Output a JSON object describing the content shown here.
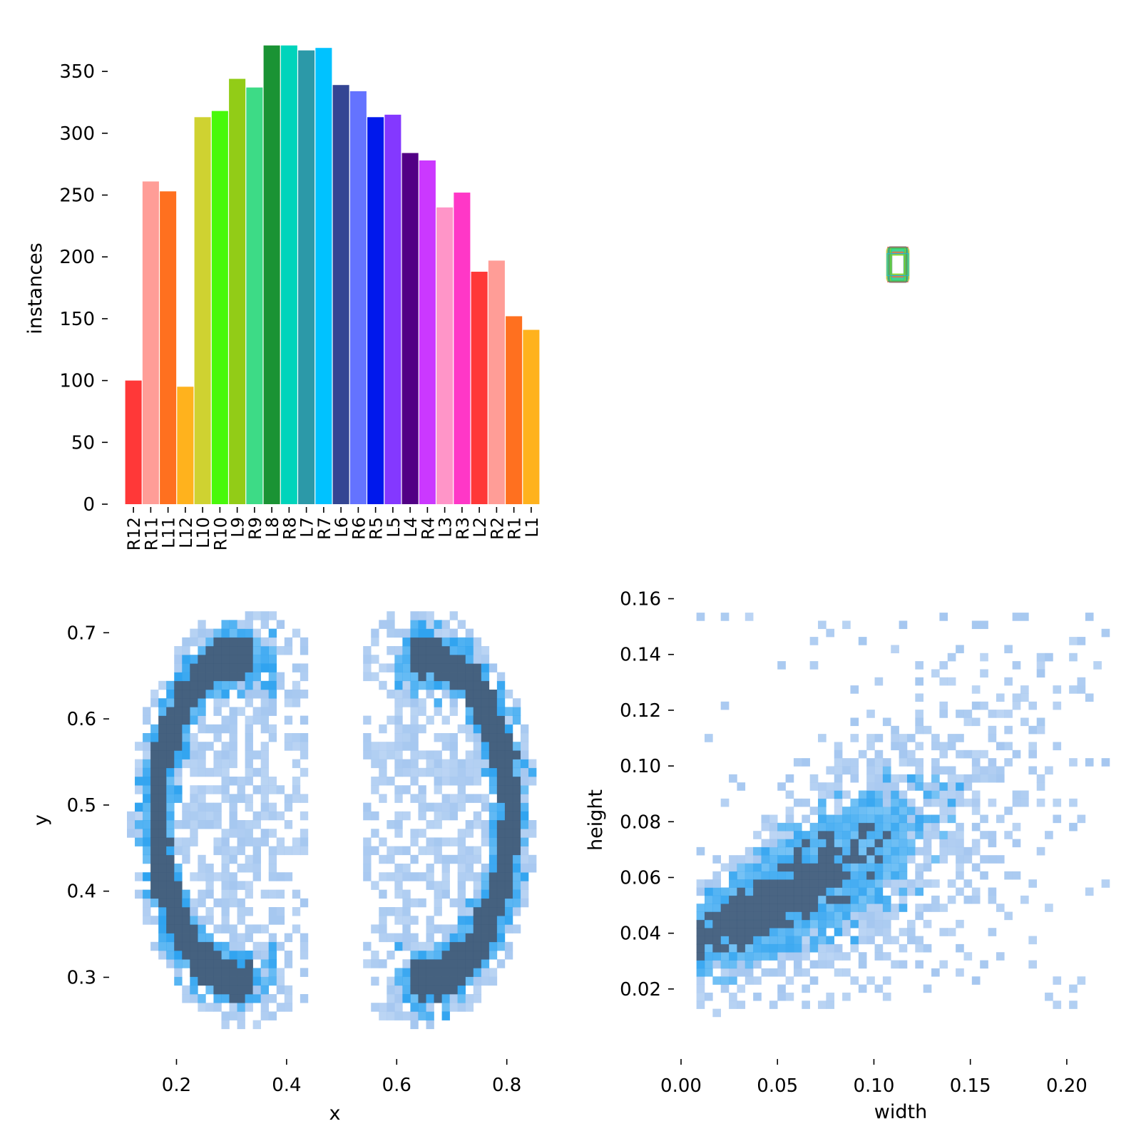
{
  "chart_data": [
    {
      "type": "bar",
      "ylabel": "instances",
      "xlabel": "",
      "ylim": [
        0,
        372
      ],
      "yticks": [
        0,
        50,
        100,
        150,
        200,
        250,
        300,
        350
      ],
      "categories": [
        "R12",
        "R11",
        "L11",
        "L12",
        "L10",
        "R10",
        "L9",
        "R9",
        "L8",
        "R8",
        "L7",
        "R7",
        "L6",
        "R6",
        "R5",
        "L5",
        "L4",
        "R4",
        "L3",
        "R3",
        "L2",
        "R2",
        "R1",
        "L1"
      ],
      "values": [
        100,
        261,
        253,
        95,
        313,
        318,
        344,
        337,
        371,
        371,
        367,
        369,
        339,
        334,
        313,
        315,
        284,
        278,
        240,
        252,
        188,
        197,
        152,
        141
      ],
      "colors": [
        "#FF3838",
        "#FF9D97",
        "#FF701F",
        "#FFB21D",
        "#CFD231",
        "#48F90A",
        "#92CC17",
        "#3DDB86",
        "#1A9334",
        "#00D4BB",
        "#2C99A8",
        "#00C2FF",
        "#344593",
        "#6473FF",
        "#0018EC",
        "#8438FF",
        "#520085",
        "#CB38FF",
        "#FF95C8",
        "#FF37C7",
        "#FF3838",
        "#FF9D97",
        "#FF701F",
        "#FFB21D"
      ]
    },
    {
      "type": "boxes",
      "description_ref": "overlaid label boxes (normalized)",
      "box_center": [
        0.5,
        0.5
      ],
      "box_size_range": [
        [
          0.03,
          0.05
        ],
        [
          0.1,
          0.16
        ]
      ],
      "box_colors": [
        "#FF3838",
        "#FF9D97",
        "#FF701F",
        "#FFB21D",
        "#CFD231",
        "#48F90A",
        "#92CC17",
        "#3DDB86",
        "#1A9334",
        "#00D4BB",
        "#2C99A8",
        "#00C2FF"
      ]
    },
    {
      "type": "heatmap",
      "xlabel": "x",
      "ylabel": "y",
      "xlim": [
        0.11,
        0.86
      ],
      "ylim": [
        0.23,
        0.735
      ],
      "xticks": [
        0.2,
        0.4,
        0.6,
        0.8
      ],
      "yticks": [
        0.3,
        0.4,
        0.5,
        0.6,
        0.7
      ],
      "ytick_labels": [
        "0.3",
        "0.4",
        "0.5",
        "0.6",
        "0.7"
      ],
      "xtick_labels": [
        "0.2",
        "0.4",
        "0.6",
        "0.8"
      ],
      "bin_size": [
        0.0143,
        0.0101
      ],
      "ranges": {
        "left_outer": {
          "ycenter": 0.48,
          "xcenter": 0.315,
          "rx": 0.19,
          "ry": 0.245
        },
        "right_outer": {
          "ycenter": 0.48,
          "xcenter": 0.655,
          "rx": 0.19,
          "ry": 0.245
        }
      }
    },
    {
      "type": "heatmap",
      "xlabel": "width",
      "ylabel": "height",
      "xlim": [
        0.0,
        0.22
      ],
      "ylim": [
        0.0,
        0.165
      ],
      "xticks": [
        0.0,
        0.05,
        0.1,
        0.15,
        0.2
      ],
      "xtick_labels": [
        "0.00",
        "0.05",
        "0.10",
        "0.15",
        "0.20"
      ],
      "yticks": [
        0.02,
        0.04,
        0.06,
        0.08,
        0.1,
        0.12,
        0.14,
        0.16
      ],
      "ytick_labels": [
        "0.02",
        "0.04",
        "0.06",
        "0.08",
        "0.10",
        "0.12",
        "0.14",
        "0.16"
      ],
      "bin_size": [
        0.0042,
        0.0029
      ],
      "densest_region": {
        "width": [
          0.02,
          0.065
        ],
        "height": [
          0.04,
          0.07
        ]
      }
    }
  ],
  "colors": {
    "heat_light": "#A5C7F0",
    "heat_mid": "#2FA3F0",
    "heat_dark": "#3B5878"
  }
}
